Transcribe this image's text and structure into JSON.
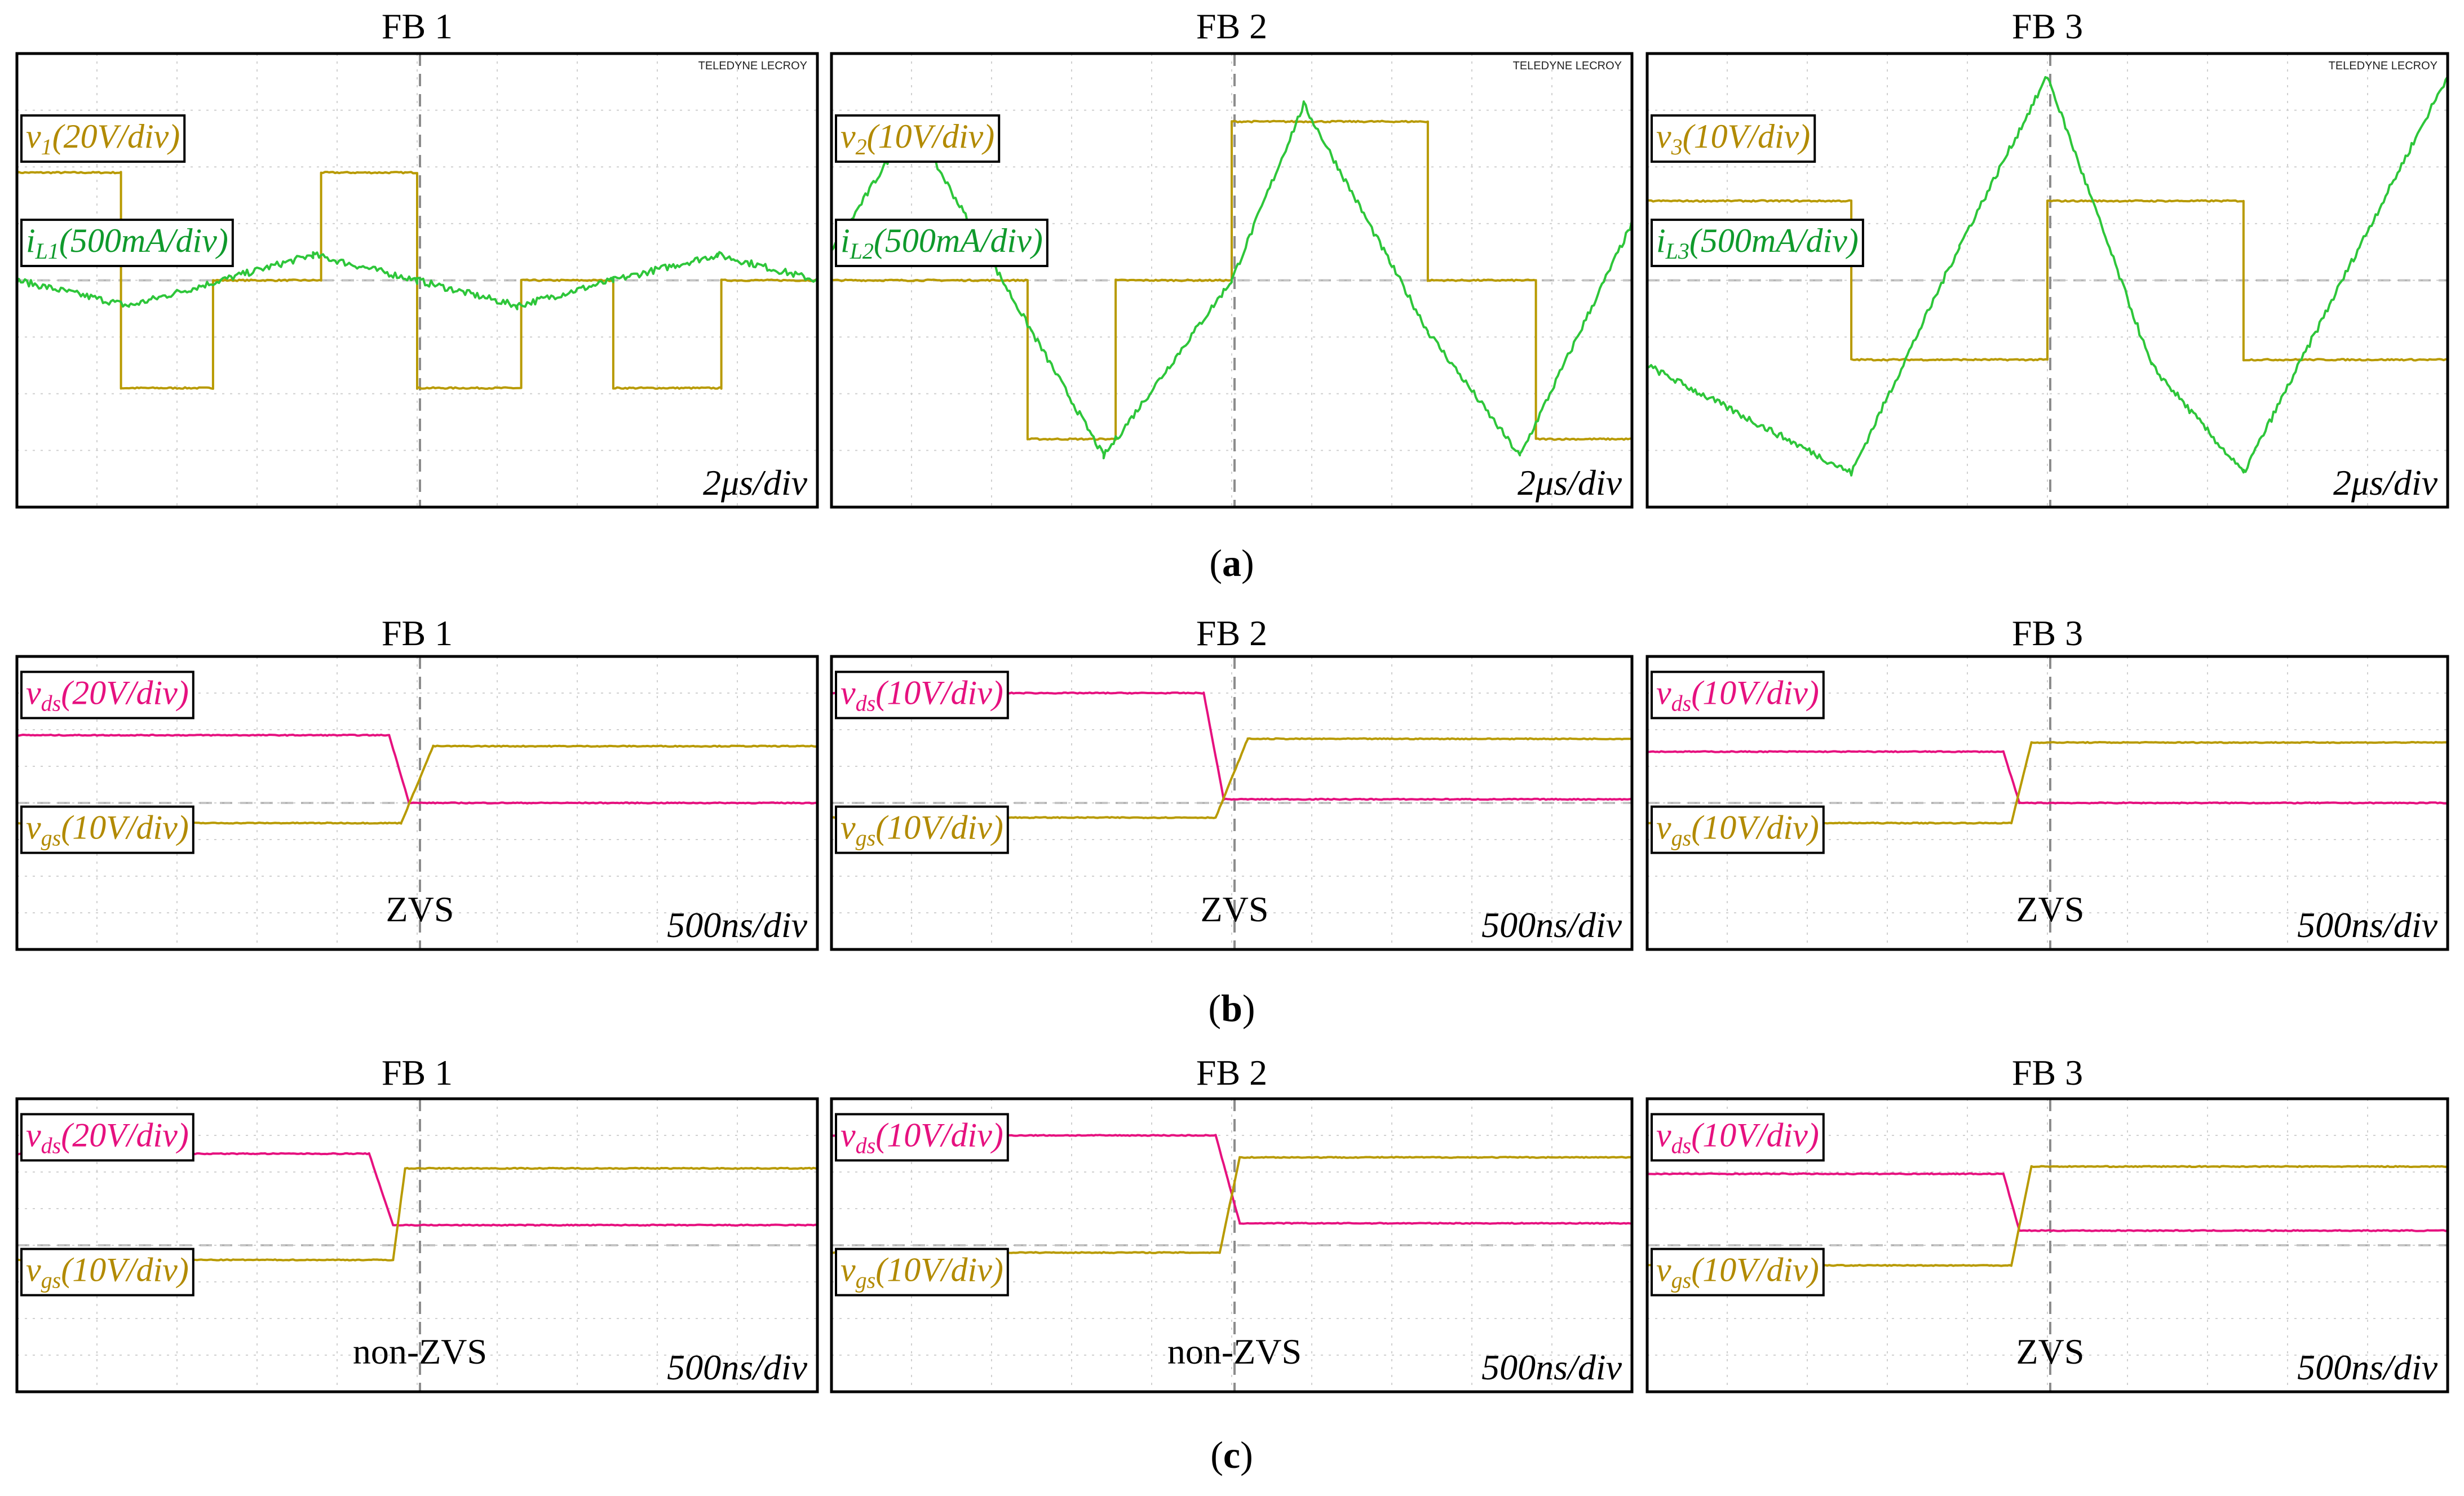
{
  "colors": {
    "v_sw": "#b89a00",
    "i_L": "#2ec63a",
    "v_ds": "#e6117f",
    "v_gs": "#b89a00",
    "v_sw_text": "#b28a00",
    "i_L_text": "#0f9a2c",
    "v_ds_text": "#e6117f",
    "v_gs_text": "#b28a00"
  },
  "captions": [
    "(a)",
    "(b)",
    "(c)"
  ],
  "logo_text": "TELEDYNE LECROY",
  "rows": [
    {
      "panels": [
        {
          "title": "FB 1",
          "timebase": "2μs/div",
          "labels": [
            {
              "pre": "v",
              "sub": "1",
              "post": "(20V/div)",
              "color_key": "v_sw_text"
            },
            {
              "pre": "i",
              "sub": "L1",
              "post": "(500mA/div)",
              "color_key": "i_L_text"
            }
          ]
        },
        {
          "title": "FB 2",
          "timebase": "2μs/div",
          "labels": [
            {
              "pre": "v",
              "sub": "2",
              "post": "(10V/div)",
              "color_key": "v_sw_text"
            },
            {
              "pre": "i",
              "sub": "L2",
              "post": "(500mA/div)",
              "color_key": "i_L_text"
            }
          ]
        },
        {
          "title": "FB 3",
          "timebase": "2μs/div",
          "labels": [
            {
              "pre": "v",
              "sub": "3",
              "post": "(10V/div)",
              "color_key": "v_sw_text"
            },
            {
              "pre": "i",
              "sub": "L3",
              "post": "(500mA/div)",
              "color_key": "i_L_text"
            }
          ]
        }
      ]
    },
    {
      "panels": [
        {
          "title": "FB 1",
          "timebase": "500ns/div",
          "note": "ZVS",
          "labels": [
            {
              "pre": "v",
              "sub": "ds",
              "post": "(20V/div)",
              "color_key": "v_ds_text"
            },
            {
              "pre": "v",
              "sub": "gs",
              "post": "(10V/div)",
              "color_key": "v_gs_text"
            }
          ]
        },
        {
          "title": "FB 2",
          "timebase": "500ns/div",
          "note": "ZVS",
          "labels": [
            {
              "pre": "v",
              "sub": "ds",
              "post": "(10V/div)",
              "color_key": "v_ds_text"
            },
            {
              "pre": "v",
              "sub": "gs",
              "post": "(10V/div)",
              "color_key": "v_gs_text"
            }
          ]
        },
        {
          "title": "FB 3",
          "timebase": "500ns/div",
          "note": "ZVS",
          "labels": [
            {
              "pre": "v",
              "sub": "ds",
              "post": "(10V/div)",
              "color_key": "v_ds_text"
            },
            {
              "pre": "v",
              "sub": "gs",
              "post": "(10V/div)",
              "color_key": "v_gs_text"
            }
          ]
        }
      ]
    },
    {
      "panels": [
        {
          "title": "FB 1",
          "timebase": "500ns/div",
          "note": "non-ZVS",
          "labels": [
            {
              "pre": "v",
              "sub": "ds",
              "post": "(20V/div)",
              "color_key": "v_ds_text"
            },
            {
              "pre": "v",
              "sub": "gs",
              "post": "(10V/div)",
              "color_key": "v_gs_text"
            }
          ]
        },
        {
          "title": "FB 2",
          "timebase": "500ns/div",
          "note": "non-ZVS",
          "labels": [
            {
              "pre": "v",
              "sub": "ds",
              "post": "(10V/div)",
              "color_key": "v_ds_text"
            },
            {
              "pre": "v",
              "sub": "gs",
              "post": "(10V/div)",
              "color_key": "v_gs_text"
            }
          ]
        },
        {
          "title": "FB 3",
          "timebase": "500ns/div",
          "note": "ZVS",
          "labels": [
            {
              "pre": "v",
              "sub": "ds",
              "post": "(10V/div)",
              "color_key": "v_ds_text"
            },
            {
              "pre": "v",
              "sub": "gs",
              "post": "(10V/div)",
              "color_key": "v_gs_text"
            }
          ]
        }
      ]
    }
  ],
  "chart_data": [
    {
      "type": "line",
      "group": "(a)",
      "description_units": "oscilloscope divisions (10 horizontal x 8 vertical, 0 = center)",
      "panels": [
        {
          "title": "FB 1",
          "x_unit": "2μs/div",
          "series": [
            {
              "name": "v1 (20V/div)",
              "color_key": "v_sw",
              "x": [
                -5,
                -3.7,
                -3.7,
                -2.55,
                -2.55,
                -1.2,
                -1.2,
                0,
                0,
                1.3,
                1.3,
                2.45,
                2.45,
                3.8,
                3.8,
                5
              ],
              "y": [
                1.9,
                1.9,
                -1.9,
                -1.9,
                0,
                0,
                1.9,
                1.9,
                -1.9,
                -1.9,
                0,
                0,
                -1.9,
                -1.9,
                0,
                0
              ]
            },
            {
              "name": "iL1 (500mA/div)",
              "color_key": "i_L",
              "x": [
                -5,
                -3.6,
                -2.45,
                -1.3,
                0,
                1.25,
                2.45,
                3.75,
                5
              ],
              "y": [
                0.0,
                -0.45,
                0.0,
                0.45,
                0.0,
                -0.45,
                0.0,
                0.45,
                0.0
              ]
            }
          ]
        },
        {
          "title": "FB 2",
          "x_unit": "2μs/div",
          "series": [
            {
              "name": "v2 (10V/div)",
              "color_key": "v_sw",
              "x": [
                -5,
                -2.55,
                -2.55,
                -1.45,
                -1.45,
                0,
                0,
                2.45,
                2.45,
                3.8,
                3.8,
                5
              ],
              "y": [
                0,
                0,
                -2.8,
                -2.8,
                0,
                0,
                2.8,
                2.8,
                0,
                0,
                -2.8,
                -2.8
              ]
            },
            {
              "name": "iL2 (500mA/div)",
              "color_key": "i_L",
              "x": [
                -5,
                -4.0,
                -2.5,
                -1.6,
                0,
                0.9,
                2.45,
                3.6,
                5
              ],
              "y": [
                0.5,
                2.8,
                -0.9,
                -3.1,
                0.0,
                3.1,
                -0.9,
                -3.1,
                1.0
              ]
            }
          ]
        },
        {
          "title": "FB 3",
          "x_unit": "2μs/div",
          "series": [
            {
              "name": "v3 (10V/div)",
              "color_key": "v_sw",
              "x": [
                -5,
                -2.45,
                -2.45,
                0,
                0,
                2.45,
                2.45,
                5
              ],
              "y": [
                1.4,
                1.4,
                -1.4,
                -1.4,
                1.4,
                1.4,
                -1.4,
                -1.4
              ]
            },
            {
              "name": "iL3 (500mA/div)",
              "color_key": "i_L",
              "x": [
                -5,
                -2.45,
                -1.1,
                0,
                1.3,
                2.45,
                3.9,
                5
              ],
              "y": [
                -1.5,
                -3.4,
                0.6,
                3.6,
                -1.5,
                -3.4,
                0.6,
                3.6
              ]
            }
          ]
        }
      ]
    },
    {
      "type": "line",
      "group": "(b)",
      "description_units": "oscilloscope divisions",
      "panels": [
        {
          "title": "FB 1",
          "x_unit": "500ns/div",
          "series": [
            {
              "name": "vds (20V/div)",
              "color_key": "v_ds",
              "x": [
                -5,
                -0.35,
                -0.1,
                5
              ],
              "y": [
                1.85,
                1.85,
                0,
                0
              ]
            },
            {
              "name": "vgs (10V/div)",
              "color_key": "v_gs",
              "x": [
                -5,
                -0.2,
                0.2,
                5
              ],
              "y": [
                -0.55,
                -0.55,
                1.55,
                1.55
              ]
            }
          ]
        },
        {
          "title": "FB 2",
          "x_unit": "500ns/div",
          "series": [
            {
              "name": "vds (10V/div)",
              "color_key": "v_ds",
              "x": [
                -5,
                -0.35,
                -0.1,
                5
              ],
              "y": [
                3.0,
                3.0,
                0.1,
                0.1
              ]
            },
            {
              "name": "vgs (10V/div)",
              "color_key": "v_gs",
              "x": [
                -5,
                -0.2,
                0.2,
                5
              ],
              "y": [
                -0.4,
                -0.4,
                1.75,
                1.75
              ]
            }
          ]
        },
        {
          "title": "FB 3",
          "x_unit": "500ns/div",
          "series": [
            {
              "name": "vds (10V/div)",
              "color_key": "v_ds",
              "x": [
                -5,
                -0.55,
                -0.35,
                5
              ],
              "y": [
                1.4,
                1.4,
                0.0,
                0.0
              ]
            },
            {
              "name": "vgs (10V/div)",
              "color_key": "v_gs",
              "x": [
                -5,
                -0.45,
                -0.2,
                5
              ],
              "y": [
                -0.55,
                -0.55,
                1.65,
                1.65
              ]
            }
          ]
        }
      ]
    },
    {
      "type": "line",
      "group": "(c)",
      "description_units": "oscilloscope divisions",
      "panels": [
        {
          "title": "FB 1",
          "x_unit": "500ns/div",
          "series": [
            {
              "name": "vds (20V/div)",
              "color_key": "v_ds",
              "x": [
                -5,
                -0.6,
                -0.3,
                5
              ],
              "y": [
                2.5,
                2.5,
                0.55,
                0.55
              ]
            },
            {
              "name": "vgs (10V/div)",
              "color_key": "v_gs",
              "x": [
                -5,
                -0.3,
                -0.15,
                5
              ],
              "y": [
                -0.4,
                -0.4,
                2.1,
                2.1
              ]
            }
          ]
        },
        {
          "title": "FB 2",
          "x_unit": "500ns/div",
          "series": [
            {
              "name": "vds (10V/div)",
              "color_key": "v_ds",
              "x": [
                -5,
                -0.2,
                0.1,
                5
              ],
              "y": [
                3.0,
                3.0,
                0.6,
                0.6
              ]
            },
            {
              "name": "vgs (10V/div)",
              "color_key": "v_gs",
              "x": [
                -5,
                -0.15,
                0.1,
                5
              ],
              "y": [
                -0.2,
                -0.2,
                2.4,
                2.4
              ]
            }
          ]
        },
        {
          "title": "FB 3",
          "x_unit": "500ns/div",
          "series": [
            {
              "name": "vds (10V/div)",
              "color_key": "v_ds",
              "x": [
                -5,
                -0.55,
                -0.35,
                5
              ],
              "y": [
                1.95,
                1.95,
                0.4,
                0.4
              ]
            },
            {
              "name": "vgs (10V/div)",
              "color_key": "v_gs",
              "x": [
                -5,
                -0.45,
                -0.2,
                5
              ],
              "y": [
                -0.55,
                -0.55,
                2.15,
                2.15
              ]
            }
          ]
        }
      ]
    }
  ]
}
